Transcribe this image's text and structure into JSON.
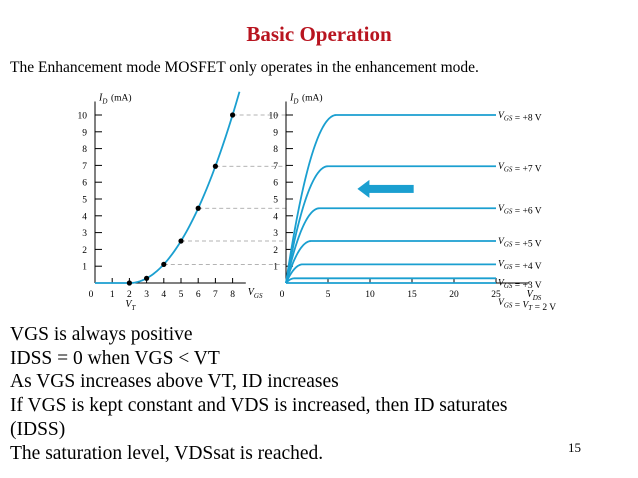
{
  "slide": {
    "title": "Basic Operation",
    "subtitle": "The Enhancement mode MOSFET only operates in the enhancement mode.",
    "bullets": [
      "VGS is always positive",
      "IDSS = 0 when VGS < VT",
      "As VGS increases above VT, ID increases",
      "If VGS is kept constant and VDS is increased, then ID saturates",
      "(IDSS)",
      "The saturation level, VDSsat  is reached."
    ],
    "page_number": "15"
  },
  "colors": {
    "title": "#b8141f",
    "curve": "#1a9fd0",
    "arrow": "#1a9fd0",
    "axes": "#000000",
    "dashed_guides": "#9a9a9a"
  },
  "chart_data": [
    {
      "type": "line",
      "name": "transfer-characteristic",
      "ylabel": "ID (mA)",
      "xlabel": "VGS",
      "x_ticks": [
        "0",
        "1",
        "2",
        "3",
        "4",
        "5",
        "6",
        "7",
        "8"
      ],
      "y_ticks": [
        "1",
        "2",
        "3",
        "4",
        "5",
        "6",
        "7",
        "8",
        "9",
        "10"
      ],
      "xlim": [
        0,
        9
      ],
      "ylim": [
        0,
        10.8
      ],
      "annotation": "VT",
      "vt": 2,
      "curve": {
        "k": 0.278,
        "vt": 2,
        "x_end": 8.4
      },
      "points": [
        {
          "x": 2,
          "y": 0
        },
        {
          "x": 3,
          "y": 0.278
        },
        {
          "x": 4,
          "y": 1.11
        },
        {
          "x": 5,
          "y": 2.5
        },
        {
          "x": 6,
          "y": 4.45
        },
        {
          "x": 7,
          "y": 6.95
        },
        {
          "x": 8,
          "y": 10.0
        }
      ]
    },
    {
      "type": "line",
      "name": "drain-characteristics",
      "ylabel": "ID (mA)",
      "xlabel": "VDS",
      "x_ticks": [
        "0",
        "5",
        "10",
        "15",
        "20",
        "25"
      ],
      "y_ticks": [
        "1",
        "2",
        "3",
        "4",
        "5",
        "6",
        "7",
        "8",
        "9",
        "10"
      ],
      "xlim": [
        0,
        29
      ],
      "ylim": [
        0,
        10.8
      ],
      "x_end": 25,
      "arrow": "pointing left at VGS = +6 V curve",
      "series": [
        {
          "name": "VGS = +8 V",
          "vgs": 8,
          "isat": 10.0
        },
        {
          "name": "VGS = +7 V",
          "vgs": 7,
          "isat": 6.95
        },
        {
          "name": "VGS = +6 V",
          "vgs": 6,
          "isat": 4.45
        },
        {
          "name": "VGS = +5 V",
          "vgs": 5,
          "isat": 2.5
        },
        {
          "name": "VGS = +4 V",
          "vgs": 4,
          "isat": 1.11
        },
        {
          "name": "VGS = +3 V",
          "vgs": 3,
          "isat": 0.278
        },
        {
          "name": "VGS = VT = 2 V",
          "vgs": 2,
          "isat": 0
        }
      ]
    }
  ]
}
